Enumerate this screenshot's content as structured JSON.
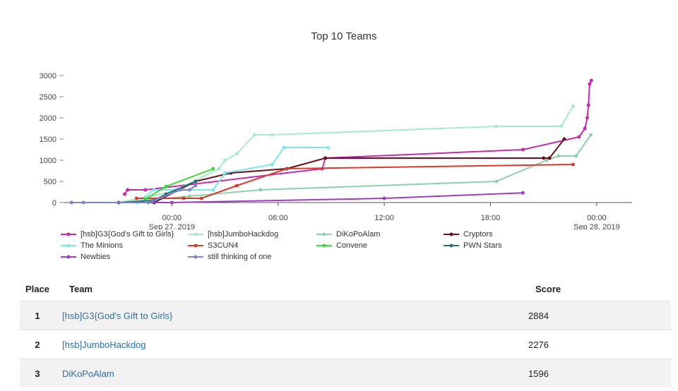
{
  "chart_data": {
    "type": "line",
    "title": "Top 10 Teams",
    "xlabel": "",
    "ylabel": "",
    "xlim": [
      "2019-09-26T18:00",
      "2019-09-28T02:00"
    ],
    "ylim": [
      0,
      3100
    ],
    "y_ticks": [
      "0",
      "500",
      "1000",
      "1500",
      "2000",
      "2500",
      "3000"
    ],
    "x_ticks": [
      {
        "at": "2019-09-27T00:00",
        "label": "00:00",
        "sub": "Sep 27, 2019"
      },
      {
        "at": "2019-09-27T06:00",
        "label": "06:00",
        "sub": ""
      },
      {
        "at": "2019-09-27T12:00",
        "label": "12:00",
        "sub": ""
      },
      {
        "at": "2019-09-27T18:00",
        "label": "18:00",
        "sub": ""
      },
      {
        "at": "2019-09-28T00:00",
        "label": "00:00",
        "sub": "Sep 28, 2019"
      }
    ],
    "grid": false,
    "legend_position": "bottom",
    "series": [
      {
        "name": "[hsb]G3{God's Gift to Girls}",
        "color": "#c62aa9",
        "points": [
          [
            "2019-09-26T21:20",
            200
          ],
          [
            "2019-09-26T21:30",
            300
          ],
          [
            "2019-09-26T22:30",
            300
          ],
          [
            "2019-09-27T08:30",
            800
          ],
          [
            "2019-09-27T08:40",
            1050
          ],
          [
            "2019-09-27T19:50",
            1250
          ],
          [
            "2019-09-27T23:00",
            1550
          ],
          [
            "2019-09-27T23:20",
            1750
          ],
          [
            "2019-09-27T23:28",
            2000
          ],
          [
            "2019-09-27T23:32",
            2300
          ],
          [
            "2019-09-27T23:36",
            2800
          ],
          [
            "2019-09-27T23:42",
            2884
          ]
        ]
      },
      {
        "name": "[hsb]JumboHackdog",
        "color": "#a8ebc8",
        "points": [
          [
            "2019-09-26T21:00",
            0
          ],
          [
            "2019-09-27T00:00",
            250
          ],
          [
            "2019-09-27T02:40",
            800
          ],
          [
            "2019-09-27T03:00",
            1000
          ],
          [
            "2019-09-27T03:40",
            1150
          ],
          [
            "2019-09-27T04:40",
            1600
          ],
          [
            "2019-09-27T05:40",
            1600
          ],
          [
            "2019-09-27T18:20",
            1800
          ],
          [
            "2019-09-27T22:00",
            1800
          ],
          [
            "2019-09-27T22:40",
            2276
          ]
        ]
      },
      {
        "name": "DiKoPoAlam",
        "color": "#8fd0ae",
        "points": [
          [
            "2019-09-26T21:00",
            0
          ],
          [
            "2019-09-27T01:00",
            150
          ],
          [
            "2019-09-27T05:00",
            300
          ],
          [
            "2019-09-27T18:20",
            500
          ],
          [
            "2019-09-27T21:10",
            1000
          ],
          [
            "2019-09-27T21:50",
            1100
          ],
          [
            "2019-09-27T22:50",
            1100
          ],
          [
            "2019-09-27T23:40",
            1596
          ]
        ]
      },
      {
        "name": "Cryptors",
        "color": "#6b1020",
        "points": [
          [
            "2019-09-26T21:00",
            0
          ],
          [
            "2019-09-26T23:00",
            0
          ],
          [
            "2019-09-27T01:20",
            500
          ],
          [
            "2019-09-27T03:20",
            700
          ],
          [
            "2019-09-27T06:30",
            800
          ],
          [
            "2019-09-27T08:40",
            1050
          ],
          [
            "2019-09-27T21:00",
            1050
          ],
          [
            "2019-09-27T21:20",
            1050
          ],
          [
            "2019-09-27T22:10",
            1500
          ]
        ]
      },
      {
        "name": "The Minions",
        "color": "#7de6ee",
        "points": [
          [
            "2019-09-26T22:00",
            0
          ],
          [
            "2019-09-26T23:00",
            300
          ],
          [
            "2019-09-27T02:20",
            300
          ],
          [
            "2019-09-27T03:00",
            700
          ],
          [
            "2019-09-27T05:40",
            900
          ],
          [
            "2019-09-27T06:20",
            1300
          ],
          [
            "2019-09-27T08:50",
            1300
          ]
        ]
      },
      {
        "name": "S3CUN4",
        "color": "#d63c2a",
        "points": [
          [
            "2019-09-26T22:00",
            100
          ],
          [
            "2019-09-27T00:40",
            100
          ],
          [
            "2019-09-27T01:40",
            100
          ],
          [
            "2019-09-27T03:40",
            400
          ],
          [
            "2019-09-27T06:30",
            800
          ],
          [
            "2019-09-27T22:40",
            900
          ]
        ]
      },
      {
        "name": "Convene",
        "color": "#3ed83a",
        "points": [
          [
            "2019-09-26T22:30",
            80
          ],
          [
            "2019-09-26T23:40",
            380
          ],
          [
            "2019-09-27T02:20",
            800
          ]
        ]
      },
      {
        "name": "PWN Stars",
        "color": "#2a6f88",
        "points": [
          [
            "2019-09-26T21:00",
            0
          ],
          [
            "2019-09-26T23:00",
            50
          ],
          [
            "2019-09-26T23:40",
            200
          ],
          [
            "2019-09-27T01:20",
            500
          ]
        ]
      },
      {
        "name": "Newbies",
        "color": "#9b3ec6",
        "points": [
          [
            "2019-09-26T18:20",
            0
          ],
          [
            "2019-09-27T00:00",
            0
          ],
          [
            "2019-09-27T12:00",
            100
          ],
          [
            "2019-09-27T19:50",
            230
          ]
        ]
      },
      {
        "name": "still thinking of one",
        "color": "#7b86c8",
        "points": [
          [
            "2019-09-26T18:20",
            0
          ],
          [
            "2019-09-26T19:00",
            0
          ],
          [
            "2019-09-26T22:40",
            0
          ],
          [
            "2019-09-27T00:30",
            300
          ],
          [
            "2019-09-27T01:00",
            300
          ],
          [
            "2019-09-27T01:20",
            400
          ]
        ]
      }
    ]
  },
  "table": {
    "headers": {
      "place": "Place",
      "team": "Team",
      "score": "Score"
    },
    "rows": [
      {
        "place": "1",
        "team": "[hsb]G3{God's Gift to Girls}",
        "score": "2884"
      },
      {
        "place": "2",
        "team": "[hsb]JumboHackdog",
        "score": "2276"
      },
      {
        "place": "3",
        "team": "DiKoPoAlam",
        "score": "1596"
      }
    ]
  }
}
